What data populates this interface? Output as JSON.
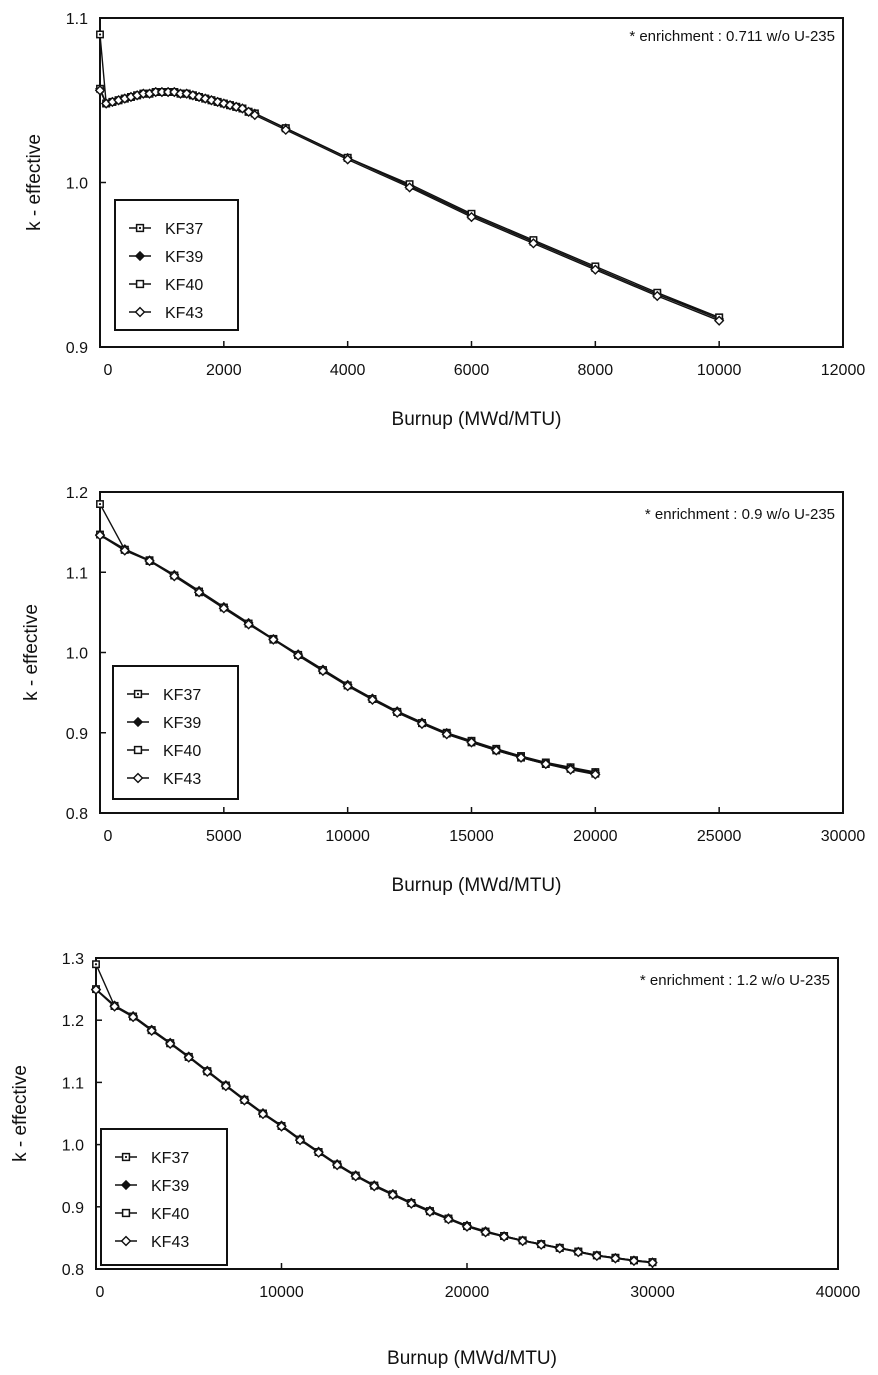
{
  "colors": {
    "ink": "#111111",
    "background": "#ffffff"
  },
  "legend_entries": [
    "KF37",
    "KF39",
    "KF40",
    "KF43"
  ],
  "chart_data": [
    {
      "type": "line",
      "note": "* enrichment :  0.711 w/o U-235",
      "xlabel": "Burnup  (MWd/MTU)",
      "ylabel": "k - effective",
      "xlim": [
        0,
        12000
      ],
      "ylim": [
        0.9,
        1.1
      ],
      "xticks": [
        0,
        2000,
        4000,
        6000,
        8000,
        10000,
        12000
      ],
      "yticks": [
        0.9,
        1.0,
        1.1
      ],
      "ytick_labels": [
        "0.9",
        "1.0",
        "1.1"
      ],
      "legend_position": "bottom-left",
      "grid": false,
      "series": [
        {
          "name": "KF37",
          "marker": "square-dot",
          "x": [
            0,
            100,
            200,
            300,
            400,
            500,
            600,
            700,
            800,
            900,
            1000,
            1100,
            1200,
            1300,
            1400,
            1500,
            1600,
            1700,
            1800,
            1900,
            2000,
            2100,
            2200,
            2300,
            2400,
            2500,
            3000,
            4000,
            5000,
            6000,
            7000,
            8000,
            9000,
            10000
          ],
          "y": [
            1.09,
            1.048,
            1.049,
            1.05,
            1.051,
            1.052,
            1.053,
            1.054,
            1.054,
            1.055,
            1.055,
            1.055,
            1.055,
            1.054,
            1.054,
            1.053,
            1.052,
            1.051,
            1.05,
            1.049,
            1.048,
            1.047,
            1.046,
            1.045,
            1.043,
            1.042,
            1.033,
            1.015,
            0.998,
            0.98,
            0.964,
            0.948,
            0.932,
            0.918
          ]
        },
        {
          "name": "KF39",
          "marker": "diamond-filled",
          "x": [
            0,
            100,
            200,
            300,
            400,
            500,
            600,
            700,
            800,
            900,
            1000,
            1100,
            1200,
            1300,
            1400,
            1500,
            1600,
            1700,
            1800,
            1900,
            2000,
            2100,
            2200,
            2300,
            2400,
            2500,
            3000,
            4000,
            5000,
            6000,
            7000,
            8000,
            9000,
            10000
          ],
          "y": [
            1.057,
            1.048,
            1.049,
            1.05,
            1.051,
            1.052,
            1.053,
            1.054,
            1.054,
            1.055,
            1.055,
            1.055,
            1.055,
            1.054,
            1.054,
            1.053,
            1.052,
            1.051,
            1.05,
            1.049,
            1.048,
            1.047,
            1.046,
            1.045,
            1.043,
            1.042,
            1.033,
            1.015,
            0.998,
            0.98,
            0.964,
            0.948,
            0.932,
            0.917
          ]
        },
        {
          "name": "KF40",
          "marker": "square",
          "x": [
            0,
            100,
            200,
            300,
            400,
            500,
            600,
            700,
            800,
            900,
            1000,
            1100,
            1200,
            1300,
            1400,
            1500,
            1600,
            1700,
            1800,
            1900,
            2000,
            2100,
            2200,
            2300,
            2400,
            2500,
            3000,
            4000,
            5000,
            6000,
            7000,
            8000,
            9000,
            10000
          ],
          "y": [
            1.057,
            1.048,
            1.049,
            1.05,
            1.051,
            1.052,
            1.053,
            1.054,
            1.054,
            1.055,
            1.055,
            1.055,
            1.055,
            1.054,
            1.054,
            1.053,
            1.052,
            1.051,
            1.05,
            1.049,
            1.048,
            1.047,
            1.046,
            1.045,
            1.043,
            1.042,
            1.033,
            1.015,
            0.999,
            0.981,
            0.965,
            0.949,
            0.933,
            0.918
          ]
        },
        {
          "name": "KF43",
          "marker": "diamond-open",
          "x": [
            0,
            100,
            200,
            300,
            400,
            500,
            600,
            700,
            800,
            900,
            1000,
            1100,
            1200,
            1300,
            1400,
            1500,
            1600,
            1700,
            1800,
            1900,
            2000,
            2100,
            2200,
            2300,
            2400,
            2500,
            3000,
            4000,
            5000,
            6000,
            7000,
            8000,
            9000,
            10000
          ],
          "y": [
            1.056,
            1.048,
            1.049,
            1.05,
            1.051,
            1.052,
            1.053,
            1.054,
            1.054,
            1.055,
            1.055,
            1.055,
            1.055,
            1.054,
            1.054,
            1.053,
            1.052,
            1.051,
            1.05,
            1.049,
            1.048,
            1.047,
            1.046,
            1.045,
            1.043,
            1.041,
            1.032,
            1.014,
            0.997,
            0.979,
            0.963,
            0.947,
            0.931,
            0.916
          ]
        }
      ]
    },
    {
      "type": "line",
      "note": "* enrichment :  0.9 w/o U-235",
      "xlabel": "Burnup  (MWd/MTU)",
      "ylabel": "k - effective",
      "xlim": [
        0,
        30000
      ],
      "ylim": [
        0.8,
        1.2
      ],
      "xticks": [
        0,
        5000,
        10000,
        15000,
        20000,
        25000,
        30000
      ],
      "yticks": [
        0.8,
        0.9,
        1.0,
        1.1,
        1.2
      ],
      "ytick_labels": [
        "0.8",
        "0.9",
        "1.0",
        "1.1",
        "1.2"
      ],
      "legend_position": "bottom-left",
      "grid": false,
      "series": [
        {
          "name": "KF37",
          "marker": "square-dot",
          "x": [
            0,
            1000,
            2000,
            3000,
            4000,
            5000,
            6000,
            7000,
            8000,
            9000,
            10000,
            11000,
            12000,
            13000,
            14000,
            15000,
            16000,
            17000,
            18000,
            19000,
            20000
          ],
          "y": [
            1.185,
            1.128,
            1.115,
            1.096,
            1.075,
            1.056,
            1.036,
            1.017,
            0.997,
            0.978,
            0.959,
            0.942,
            0.926,
            0.912,
            0.9,
            0.89,
            0.88,
            0.871,
            0.863,
            0.857,
            0.851
          ]
        },
        {
          "name": "KF39",
          "marker": "diamond-filled",
          "x": [
            0,
            1000,
            2000,
            3000,
            4000,
            5000,
            6000,
            7000,
            8000,
            9000,
            10000,
            11000,
            12000,
            13000,
            14000,
            15000,
            16000,
            17000,
            18000,
            19000,
            20000
          ],
          "y": [
            1.147,
            1.129,
            1.115,
            1.097,
            1.077,
            1.057,
            1.037,
            1.017,
            0.998,
            0.979,
            0.96,
            0.943,
            0.927,
            0.913,
            0.9,
            0.889,
            0.879,
            0.87,
            0.862,
            0.856,
            0.85
          ]
        },
        {
          "name": "KF40",
          "marker": "square",
          "x": [
            0,
            1000,
            2000,
            3000,
            4000,
            5000,
            6000,
            7000,
            8000,
            9000,
            10000,
            11000,
            12000,
            13000,
            14000,
            15000,
            16000,
            17000,
            18000,
            19000,
            20000
          ],
          "y": [
            1.147,
            1.128,
            1.114,
            1.096,
            1.076,
            1.056,
            1.036,
            1.016,
            0.997,
            0.978,
            0.959,
            0.942,
            0.926,
            0.912,
            0.899,
            0.888,
            0.878,
            0.869,
            0.861,
            0.855,
            0.849
          ]
        },
        {
          "name": "KF43",
          "marker": "diamond-open",
          "x": [
            0,
            1000,
            2000,
            3000,
            4000,
            5000,
            6000,
            7000,
            8000,
            9000,
            10000,
            11000,
            12000,
            13000,
            14000,
            15000,
            16000,
            17000,
            18000,
            19000,
            20000
          ],
          "y": [
            1.146,
            1.127,
            1.114,
            1.095,
            1.075,
            1.055,
            1.035,
            1.016,
            0.996,
            0.977,
            0.958,
            0.941,
            0.925,
            0.911,
            0.898,
            0.888,
            0.878,
            0.869,
            0.861,
            0.854,
            0.848
          ]
        }
      ]
    },
    {
      "type": "line",
      "note": "* enrichment :  1.2 w/o U-235",
      "xlabel": "Burnup  (MWd/MTU)",
      "ylabel": "k - effective",
      "xlim": [
        0,
        40000
      ],
      "ylim": [
        0.8,
        1.3
      ],
      "xticks": [
        0,
        10000,
        20000,
        30000,
        40000
      ],
      "yticks": [
        0.8,
        0.9,
        1.0,
        1.1,
        1.2,
        1.3
      ],
      "ytick_labels": [
        "0.8",
        "0.9",
        "1.0",
        "1.1",
        "1.2",
        "1.3"
      ],
      "legend_position": "bottom-left",
      "grid": false,
      "series": [
        {
          "name": "KF37",
          "marker": "square-dot",
          "x": [
            0,
            1000,
            2000,
            3000,
            4000,
            5000,
            6000,
            7000,
            8000,
            9000,
            10000,
            11000,
            12000,
            13000,
            14000,
            15000,
            16000,
            17000,
            18000,
            19000,
            20000,
            21000,
            22000,
            23000,
            24000,
            25000,
            26000,
            27000,
            28000,
            29000,
            30000
          ],
          "y": [
            1.29,
            1.223,
            1.206,
            1.184,
            1.163,
            1.141,
            1.118,
            1.095,
            1.072,
            1.05,
            1.03,
            1.008,
            0.988,
            0.968,
            0.95,
            0.934,
            0.92,
            0.906,
            0.893,
            0.881,
            0.869,
            0.86,
            0.853,
            0.846,
            0.84,
            0.834,
            0.828,
            0.822,
            0.818,
            0.814,
            0.811
          ]
        },
        {
          "name": "KF39",
          "marker": "diamond-filled",
          "x": [
            0,
            1000,
            2000,
            3000,
            4000,
            5000,
            6000,
            7000,
            8000,
            9000,
            10000,
            11000,
            12000,
            13000,
            14000,
            15000,
            16000,
            17000,
            18000,
            19000,
            20000,
            21000,
            22000,
            23000,
            24000,
            25000,
            26000,
            27000,
            28000,
            29000,
            30000
          ],
          "y": [
            1.25,
            1.224,
            1.207,
            1.185,
            1.164,
            1.142,
            1.119,
            1.096,
            1.073,
            1.051,
            1.031,
            1.009,
            0.989,
            0.969,
            0.951,
            0.935,
            0.921,
            0.907,
            0.894,
            0.882,
            0.87,
            0.861,
            0.853,
            0.846,
            0.84,
            0.834,
            0.828,
            0.822,
            0.818,
            0.814,
            0.811
          ]
        },
        {
          "name": "KF40",
          "marker": "square",
          "x": [
            0,
            1000,
            2000,
            3000,
            4000,
            5000,
            6000,
            7000,
            8000,
            9000,
            10000,
            11000,
            12000,
            13000,
            14000,
            15000,
            16000,
            17000,
            18000,
            19000,
            20000,
            21000,
            22000,
            23000,
            24000,
            25000,
            26000,
            27000,
            28000,
            29000,
            30000
          ],
          "y": [
            1.25,
            1.223,
            1.206,
            1.184,
            1.163,
            1.141,
            1.118,
            1.095,
            1.072,
            1.05,
            1.03,
            1.008,
            0.988,
            0.968,
            0.95,
            0.934,
            0.92,
            0.906,
            0.893,
            0.881,
            0.869,
            0.86,
            0.853,
            0.846,
            0.84,
            0.834,
            0.828,
            0.822,
            0.818,
            0.814,
            0.811
          ]
        },
        {
          "name": "KF43",
          "marker": "diamond-open",
          "x": [
            0,
            1000,
            2000,
            3000,
            4000,
            5000,
            6000,
            7000,
            8000,
            9000,
            10000,
            11000,
            12000,
            13000,
            14000,
            15000,
            16000,
            17000,
            18000,
            19000,
            20000,
            21000,
            22000,
            23000,
            24000,
            25000,
            26000,
            27000,
            28000,
            29000,
            30000
          ],
          "y": [
            1.249,
            1.222,
            1.205,
            1.183,
            1.162,
            1.14,
            1.117,
            1.094,
            1.071,
            1.049,
            1.029,
            1.007,
            0.987,
            0.967,
            0.949,
            0.933,
            0.919,
            0.905,
            0.892,
            0.88,
            0.868,
            0.859,
            0.852,
            0.845,
            0.839,
            0.833,
            0.827,
            0.821,
            0.817,
            0.813,
            0.81
          ]
        }
      ]
    }
  ]
}
